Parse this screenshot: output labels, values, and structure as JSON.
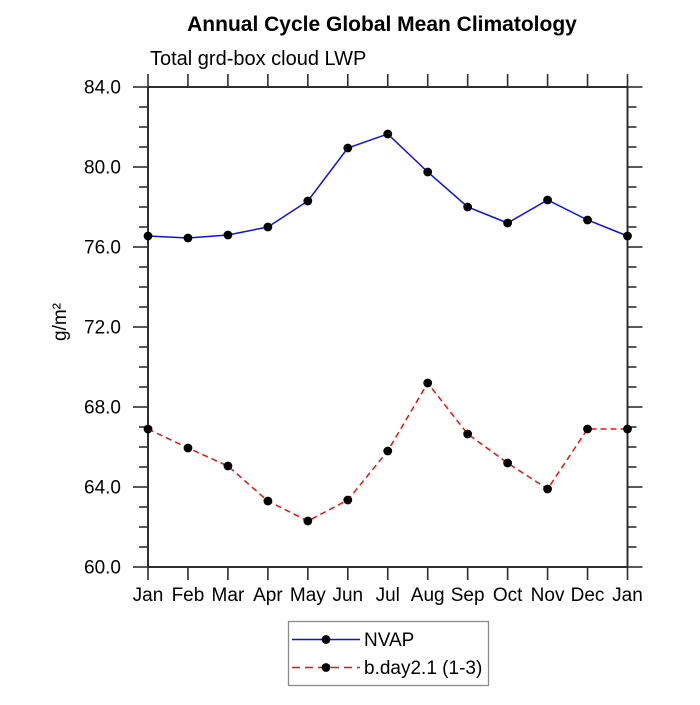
{
  "chart_data": {
    "type": "line",
    "title": "Annual Cycle Global Mean Climatology",
    "subtitle": "Total grd-box cloud LWP",
    "ylabel": "g/m²",
    "categories": [
      "Jan",
      "Feb",
      "Mar",
      "Apr",
      "May",
      "Jun",
      "Jul",
      "Aug",
      "Sep",
      "Oct",
      "Nov",
      "Dec",
      "Jan"
    ],
    "ylim": [
      60.0,
      84.0
    ],
    "ytick_major_step": 4.0,
    "ytick_minor_step": 1.0,
    "ytick_labels": [
      "60.0",
      "64.0",
      "68.0",
      "72.0",
      "76.0",
      "80.0",
      "84.0"
    ],
    "grid": false,
    "legend_position": "bottom-center",
    "axis_color": "#2e2e2e",
    "marker_color": "#000000",
    "series": [
      {
        "name": "NVAP",
        "color": "#0f0fe6",
        "style": "solid",
        "marker": "circle",
        "values": [
          76.55,
          76.45,
          76.6,
          77.0,
          78.3,
          80.95,
          81.65,
          79.75,
          78.0,
          77.2,
          78.35,
          77.35,
          76.55
        ]
      },
      {
        "name": "b.day2.1 (1-3)",
        "color": "#ee1010",
        "style": "dashed",
        "marker": "circle",
        "values": [
          66.9,
          65.95,
          65.05,
          63.3,
          62.3,
          63.35,
          65.8,
          69.2,
          66.65,
          65.2,
          63.9,
          66.9,
          66.9
        ]
      }
    ]
  }
}
